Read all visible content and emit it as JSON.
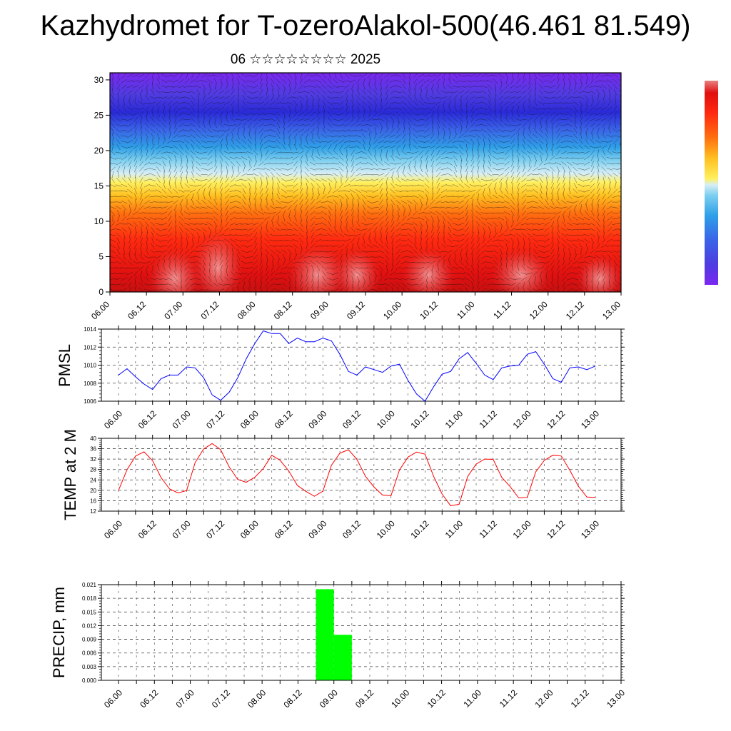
{
  "title": "Kazhydromet for T-ozeroAlakol-500(46.461 81.549)",
  "subtitle": "06 ☆☆☆☆☆☆☆☆ 2025",
  "chart_data": [
    {
      "type": "heatmap",
      "name": "temperature-height-section",
      "x_ticks": [
        "06.00",
        "06.12",
        "07.00",
        "07.12",
        "08.00",
        "08.12",
        "09.00",
        "09.12",
        "10.00",
        "10.12",
        "11.00",
        "11.12",
        "12.00",
        "12.12",
        "13.00"
      ],
      "y_ticks": [
        "0",
        "5",
        "10",
        "15",
        "20",
        "25",
        "30"
      ],
      "ylim": [
        0,
        31
      ],
      "wind_vectors": true,
      "colorbar": {
        "placement": "right",
        "colors": [
          "#6a1cf0",
          "#4f3ce0",
          "#3a64e8",
          "#2fa0e8",
          "#7fd0f0",
          "#d8eef5",
          "#fff060",
          "#ffc020",
          "#ff7010",
          "#ff2a10",
          "#e01010",
          "#e88080"
        ]
      }
    },
    {
      "type": "line",
      "name": "pmsl",
      "ylabel": "PMSL",
      "color": "#0000ff",
      "x_ticks": [
        "06.00",
        "06.12",
        "07.00",
        "07.12",
        "08.00",
        "08.12",
        "09.00",
        "09.12",
        "10.00",
        "10.12",
        "11.00",
        "11.12",
        "12.00",
        "12.12",
        "13.00"
      ],
      "y_ticks": [
        "1006",
        "1008",
        "1010",
        "1012",
        "1014"
      ],
      "ylim": [
        1006,
        1014
      ],
      "values": [
        1008.9,
        1009.6,
        1008.7,
        1007.9,
        1007.3,
        1008.5,
        1008.9,
        1008.9,
        1009.8,
        1009.7,
        1008.6,
        1006.7,
        1006.1,
        1007.0,
        1008.6,
        1010.7,
        1012.4,
        1013.8,
        1013.5,
        1013.5,
        1012.4,
        1013.0,
        1012.6,
        1012.6,
        1013.0,
        1012.7,
        1011.2,
        1009.3,
        1008.9,
        1009.8,
        1009.5,
        1009.2,
        1009.9,
        1010.1,
        1008.3,
        1006.8,
        1006.0,
        1007.6,
        1009.0,
        1009.3,
        1010.7,
        1011.4,
        1010.2,
        1008.9,
        1008.4,
        1009.7,
        1009.9,
        1010.0,
        1011.2,
        1011.5,
        1010.1,
        1008.5,
        1008.1,
        1009.7,
        1009.8,
        1009.5,
        1009.9
      ]
    },
    {
      "type": "line",
      "name": "temp-2m",
      "ylabel": "TEMP at 2 M",
      "color": "#ff0000",
      "x_ticks": [
        "06.00",
        "06.12",
        "07.00",
        "07.12",
        "08.00",
        "08.12",
        "09.00",
        "09.12",
        "10.00",
        "10.12",
        "11.00",
        "11.12",
        "12.00",
        "12.12",
        "13.00"
      ],
      "y_ticks": [
        "12",
        "16",
        "20",
        "24",
        "28",
        "32",
        "36",
        "40"
      ],
      "ylim": [
        12,
        40
      ],
      "values": [
        20.0,
        27.9,
        33.2,
        34.8,
        31.4,
        24.9,
        20.5,
        19.0,
        19.9,
        30.7,
        35.9,
        38.0,
        35.6,
        29.0,
        24.2,
        23.1,
        25.0,
        28.4,
        33.5,
        31.5,
        27.4,
        21.9,
        19.6,
        17.7,
        19.7,
        29.6,
        34.3,
        35.6,
        31.9,
        25.4,
        21.3,
        18.2,
        17.9,
        27.8,
        32.8,
        34.7,
        33.9,
        25.4,
        18.6,
        14.1,
        14.6,
        25.3,
        30.1,
        32.0,
        31.9,
        25.0,
        21.4,
        17.1,
        17.3,
        27.1,
        31.5,
        33.5,
        33.2,
        27.7,
        21.6,
        17.4,
        17.3
      ]
    },
    {
      "type": "bar",
      "name": "precip",
      "ylabel": "PRECIP, mm",
      "color": "#00ff00",
      "x_ticks": [
        "06.00",
        "06.12",
        "07.00",
        "07.12",
        "08.00",
        "08.12",
        "09.00",
        "09.12",
        "10.00",
        "10.12",
        "11.00",
        "11.12",
        "12.00",
        "12.12",
        "13.00"
      ],
      "y_ticks": [
        "0.000",
        "0.003",
        "0.006",
        "0.009",
        "0.012",
        "0.015",
        "0.018",
        "0.021"
      ],
      "ylim": [
        0,
        0.021
      ],
      "bars": [
        {
          "x_start": 22,
          "x_end": 24,
          "value": 0.02
        },
        {
          "x_start": 24,
          "x_end": 26,
          "value": 0.01
        }
      ]
    }
  ]
}
